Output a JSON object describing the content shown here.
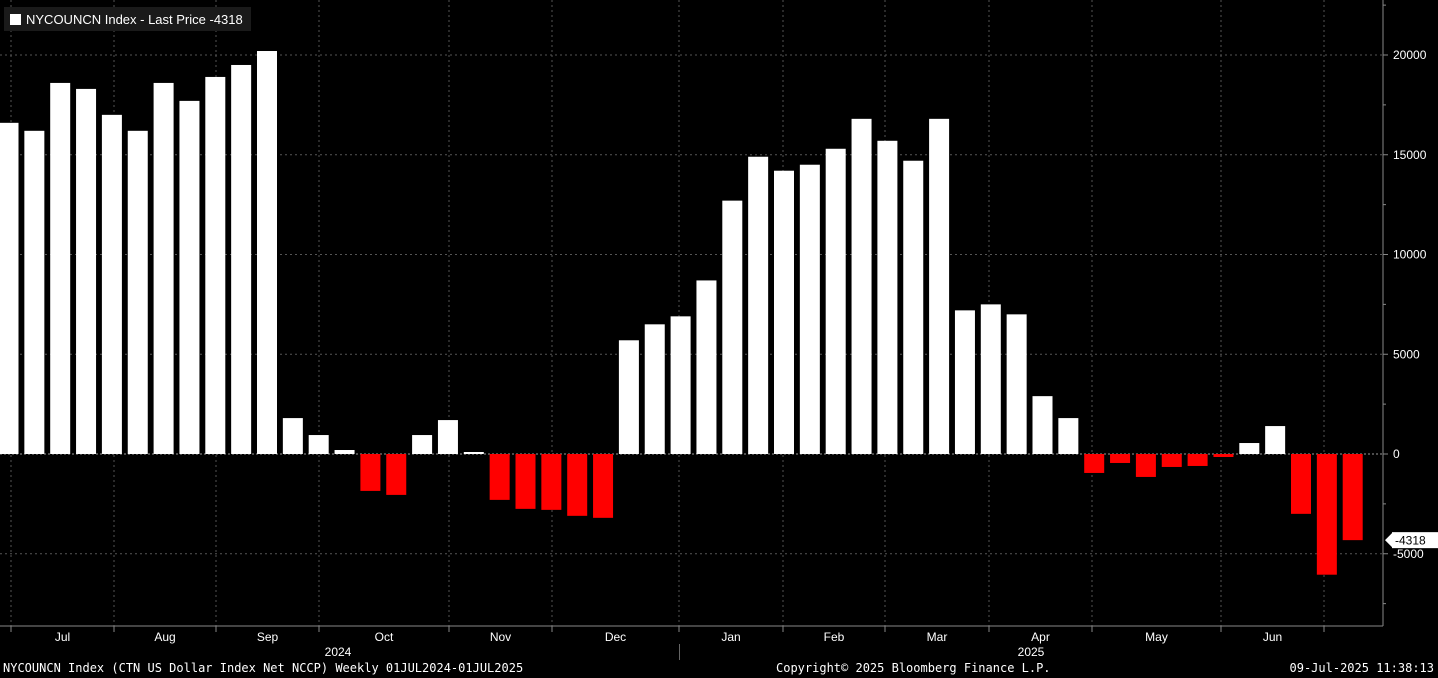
{
  "legend": {
    "label": "NYCOUNCN Index - Last Price -4318",
    "swatch_color": "#ffffff"
  },
  "last_price_tag": "-4318",
  "footer": {
    "left": "NYCOUNCN Index (CTN US Dollar Index Net NCCP)  Weekly 01JUL2024-01JUL2025",
    "center": "Copyright© 2025 Bloomberg Finance L.P.",
    "right": "09-Jul-2025 11:38:13"
  },
  "colors": {
    "background": "#000000",
    "positive": "#ffffff",
    "negative": "#ff0000",
    "grid": "#555555",
    "axis": "#888888"
  },
  "chart_data": {
    "type": "bar",
    "title": "NYCOUNCN Index - Last Price -4318",
    "frequency": "Weekly",
    "ylim": [
      -8600,
      22300
    ],
    "yticks": [
      20000,
      15000,
      10000,
      5000,
      0,
      -5000
    ],
    "ytick_labels": [
      "20000",
      "15000",
      "10000",
      "5000",
      "0",
      "-5000"
    ],
    "grid": true,
    "legend_position": "top-left",
    "months": [
      "Jul",
      "Aug",
      "Sep",
      "Oct",
      "Nov",
      "Dec",
      "Jan",
      "Feb",
      "Mar",
      "Apr",
      "May",
      "Jun"
    ],
    "years": [
      "2024",
      "2025"
    ],
    "values": [
      16600,
      16200,
      18600,
      18300,
      17000,
      16200,
      18600,
      17700,
      18900,
      19500,
      20200,
      1800,
      950,
      200,
      -1850,
      -2050,
      950,
      1700,
      100,
      -2300,
      -2750,
      -2800,
      -3100,
      -3200,
      5700,
      6500,
      6900,
      8700,
      12700,
      14900,
      14200,
      14500,
      15300,
      16800,
      15700,
      14700,
      16800,
      7200,
      7500,
      7000,
      2900,
      1800,
      -950,
      -450,
      -1150,
      -650,
      -600,
      -150,
      550,
      1400,
      -3000,
      -6050,
      -4318
    ]
  }
}
